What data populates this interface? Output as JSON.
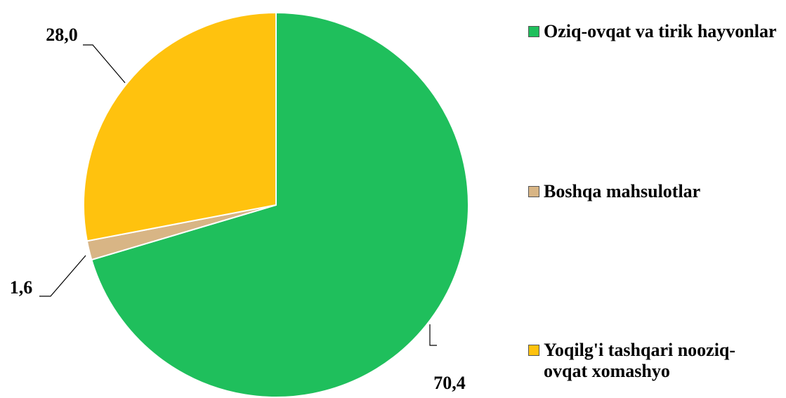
{
  "chart_data": {
    "type": "pie",
    "categories": [
      "Oziq-ovqat va tirik hayvonlar",
      "Boshqa mahsulotlar",
      "Yoqilg'i tashqari nooziq-ovqat xomashyo"
    ],
    "values": [
      70.4,
      1.6,
      28.0
    ],
    "value_labels": [
      "70,4",
      "1,6",
      "28,0"
    ],
    "colors": [
      "#1fbf5c",
      "#d8b585",
      "#ffc20e"
    ],
    "legend": "right"
  }
}
